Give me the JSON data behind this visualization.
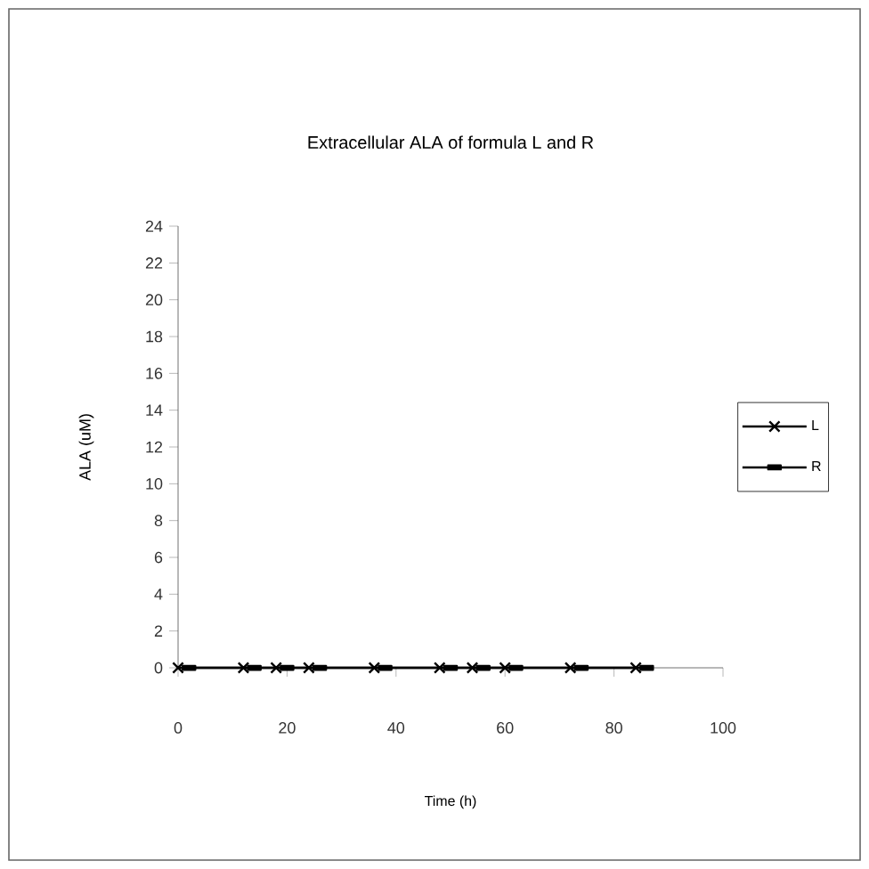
{
  "chart_data": {
    "type": "line",
    "title": "Extracellular ALA of formula L and R",
    "xlabel": "Time (h)",
    "ylabel": "ALA (uM)",
    "series": [
      {
        "name": "L",
        "color": "#000000",
        "marker": "cross",
        "x": [
          0,
          12,
          18,
          24,
          36,
          48,
          54,
          60,
          72,
          84
        ],
        "values": [
          0,
          0,
          0,
          0,
          0,
          0,
          0,
          0,
          0,
          0
        ]
      },
      {
        "name": "R",
        "color": "#000000",
        "marker": "square",
        "x": [
          2,
          14,
          20,
          26,
          38,
          50,
          56,
          62,
          74,
          86
        ],
        "values": [
          0,
          0,
          0,
          0,
          0,
          0,
          0,
          0,
          0,
          0
        ]
      }
    ],
    "xlim": [
      0,
      100
    ],
    "xticks": [
      0,
      20,
      40,
      60,
      80,
      100
    ],
    "ylim": [
      0,
      24
    ],
    "yticks": [
      0,
      2,
      4,
      6,
      8,
      10,
      12,
      14,
      16,
      18,
      20,
      22,
      24
    ],
    "legend": "right",
    "grid": false
  }
}
